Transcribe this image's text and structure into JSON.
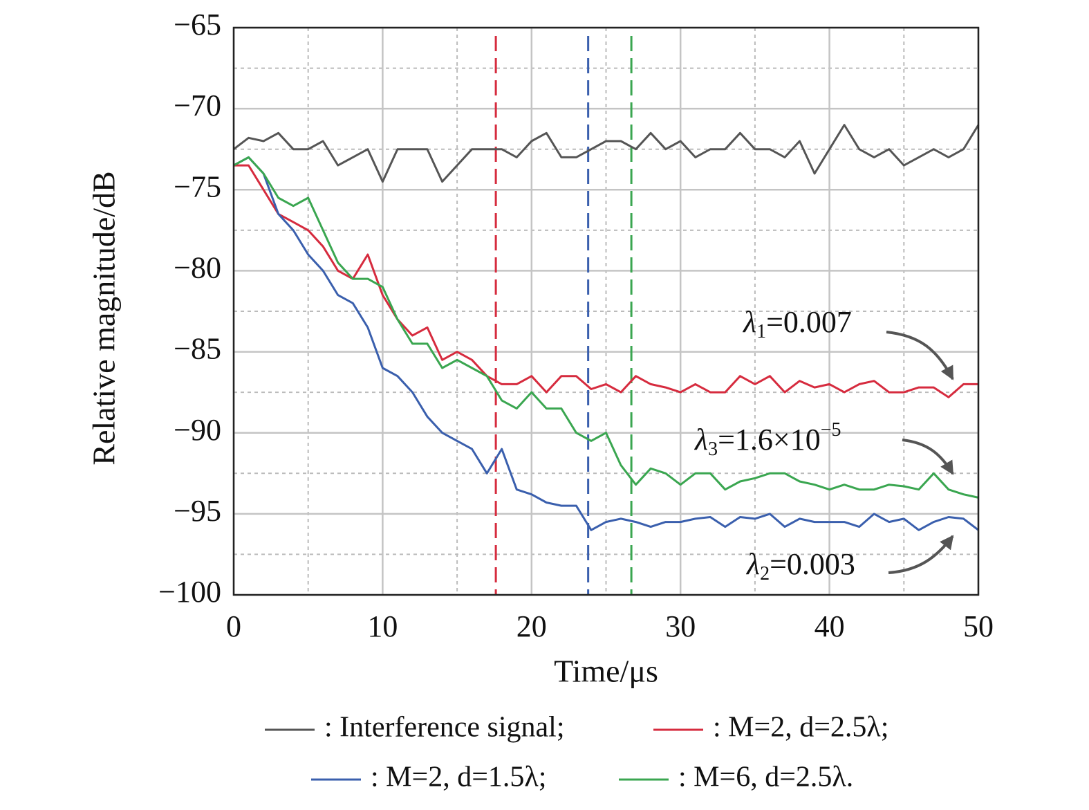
{
  "chart_data": {
    "type": "line",
    "xlabel": "Time/μs",
    "ylabel": "Relative magnitude/dB",
    "xlim": [
      0,
      50
    ],
    "ylim": [
      -100,
      -65
    ],
    "xticks": [
      0,
      10,
      20,
      30,
      40,
      50
    ],
    "yticks": [
      {
        "value": -100,
        "label": "−100"
      },
      {
        "value": -95,
        "label": "−95"
      },
      {
        "value": -90,
        "label": "−90"
      },
      {
        "value": -85,
        "label": "−85"
      },
      {
        "value": -80,
        "label": "−80"
      },
      {
        "value": -75,
        "label": "−75"
      },
      {
        "value": -70,
        "label": "−70"
      },
      {
        "value": -65,
        "label": "−65"
      }
    ],
    "x_minor_grid": [
      5,
      15,
      25,
      35,
      45
    ],
    "y_minor_grid": [
      -97.5,
      -92.5,
      -87.5,
      -82.5,
      -77.5,
      -72.5,
      -67.5
    ],
    "grid": true,
    "x": [
      0,
      1,
      2,
      3,
      4,
      5,
      6,
      7,
      8,
      9,
      10,
      11,
      12,
      13,
      14,
      15,
      16,
      17,
      18,
      19,
      20,
      21,
      22,
      23,
      24,
      25,
      26,
      27,
      28,
      29,
      30,
      31,
      32,
      33,
      34,
      35,
      36,
      37,
      38,
      39,
      40,
      41,
      42,
      43,
      44,
      45,
      46,
      47,
      48,
      49,
      50
    ],
    "series": [
      {
        "name": ": Interference signal;",
        "color": "#555555",
        "values": [
          -72.5,
          -71.8,
          -72,
          -71.5,
          -72.5,
          -72.5,
          -72,
          -73.5,
          -73,
          -72.5,
          -74.5,
          -72.5,
          -72.5,
          -72.5,
          -74.5,
          -73.5,
          -72.5,
          -72.5,
          -72.5,
          -73,
          -72,
          -71.5,
          -73,
          -73,
          -72.5,
          -72,
          -72,
          -72.5,
          -71.5,
          -72.5,
          -72,
          -73,
          -72.5,
          -72.5,
          -71.5,
          -72.5,
          -72.5,
          -73,
          -72,
          -74,
          -72.5,
          -71,
          -72.5,
          -73,
          -72.5,
          -73.5,
          -73,
          -72.5,
          -73,
          -72.5,
          -71
        ]
      },
      {
        "name": ": M=2, d=2.5λ;",
        "color": "#d62b3e",
        "values": [
          -73.5,
          -73.5,
          -75,
          -76.5,
          -77,
          -77.5,
          -78.5,
          -80,
          -80.5,
          -79,
          -81.5,
          -83,
          -84,
          -83.5,
          -85.5,
          -85,
          -85.5,
          -86.5,
          -87,
          -87,
          -86.5,
          -87.5,
          -86.5,
          -86.5,
          -87.3,
          -87,
          -87.5,
          -86.5,
          -87,
          -87.2,
          -87.5,
          -87,
          -87.5,
          -87.5,
          -86.5,
          -87,
          -86.5,
          -87.5,
          -86.8,
          -87.2,
          -87,
          -87.5,
          -87,
          -86.8,
          -87.5,
          -87.5,
          -87.2,
          -87.2,
          -87.8,
          -87,
          -87
        ]
      },
      {
        "name": ": M=2, d=1.5λ;",
        "color": "#3a5fad",
        "values": [
          -73.5,
          -73,
          -74,
          -76.5,
          -77.5,
          -79,
          -80,
          -81.5,
          -82,
          -83.5,
          -86,
          -86.5,
          -87.5,
          -89,
          -90,
          -90.5,
          -91,
          -92.5,
          -91,
          -93.5,
          -93.8,
          -94.3,
          -94.5,
          -94.5,
          -96,
          -95.5,
          -95.3,
          -95.5,
          -95.8,
          -95.5,
          -95.5,
          -95.3,
          -95.2,
          -95.8,
          -95.2,
          -95.3,
          -95,
          -95.8,
          -95.3,
          -95.5,
          -95.5,
          -95.5,
          -95.8,
          -95,
          -95.5,
          -95.3,
          -96,
          -95.5,
          -95.2,
          -95.3,
          -96
        ]
      },
      {
        "name": ": M=6, d=2.5λ.",
        "color": "#3aa650",
        "values": [
          -73.5,
          -73,
          -74,
          -75.5,
          -76,
          -75.5,
          -77.5,
          -79.5,
          -80.5,
          -80.5,
          -81,
          -83,
          -84.5,
          -84.5,
          -86,
          -85.5,
          -86,
          -86.5,
          -88,
          -88.5,
          -87.5,
          -88.5,
          -88.5,
          -90,
          -90.5,
          -90,
          -92,
          -93.2,
          -92.2,
          -92.5,
          -93.2,
          -92.5,
          -92.5,
          -93.5,
          -93,
          -92.8,
          -92.5,
          -92.5,
          -93,
          -93.2,
          -93.5,
          -93.2,
          -93.5,
          -93.5,
          -93.2,
          -93.3,
          -93.5,
          -92.5,
          -93.5,
          -93.8,
          -94
        ]
      }
    ],
    "vlines": [
      {
        "x": 17.6,
        "color": "#d62b3e"
      },
      {
        "x": 23.8,
        "color": "#3a5fad"
      },
      {
        "x": 26.7,
        "color": "#3aa650"
      }
    ],
    "annotations": [
      {
        "base": "λ",
        "sub": "1",
        "rest": "=0.007"
      },
      {
        "base": "λ",
        "sub": "3",
        "rest": "=1.6×10",
        "sup": "−5"
      },
      {
        "base": "λ",
        "sub": "2",
        "rest": "=0.003"
      }
    ]
  }
}
